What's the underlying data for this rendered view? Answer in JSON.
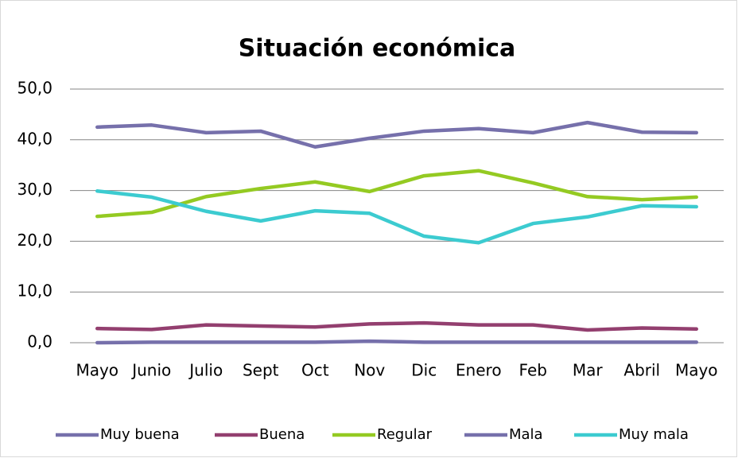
{
  "chart_data": {
    "type": "line",
    "title": "Situación económica",
    "categories": [
      "Mayo",
      "Junio",
      "Julio",
      "Sept",
      "Oct",
      "Nov",
      "Dic",
      "Enero",
      "Feb",
      "Mar",
      "Abril",
      "Mayo"
    ],
    "series": [
      {
        "name": "Muy buena",
        "color": "#7670ab",
        "values": [
          0.0,
          0.1,
          0.1,
          0.1,
          0.1,
          0.3,
          0.1,
          0.1,
          0.1,
          0.1,
          0.1,
          0.1
        ]
      },
      {
        "name": "Buena",
        "color": "#933f6f",
        "values": [
          2.8,
          2.6,
          3.5,
          3.3,
          3.1,
          3.7,
          3.9,
          3.5,
          3.5,
          2.5,
          2.9,
          2.7
        ]
      },
      {
        "name": "Regular",
        "color": "#94ca22",
        "values": [
          24.9,
          25.7,
          28.8,
          30.4,
          31.7,
          29.8,
          32.9,
          33.9,
          31.5,
          28.8,
          28.2,
          28.7
        ]
      },
      {
        "name": "Mala",
        "color": "#7670ab",
        "values": [
          42.5,
          42.9,
          41.4,
          41.7,
          38.6,
          40.3,
          41.7,
          42.2,
          41.4,
          43.4,
          41.5,
          41.4
        ]
      },
      {
        "name": "Muy mala",
        "color": "#3ccbd0",
        "values": [
          29.9,
          28.7,
          25.9,
          24.0,
          26.0,
          25.5,
          21.0,
          19.7,
          23.5,
          24.8,
          27.0,
          26.8
        ]
      }
    ],
    "ylim": [
      0,
      50
    ],
    "yticks": [
      {
        "value": 0,
        "label": "0,0"
      },
      {
        "value": 10,
        "label": "10,0"
      },
      {
        "value": 20,
        "label": "20,0"
      },
      {
        "value": 30,
        "label": "30,0"
      },
      {
        "value": 40,
        "label": "40,0"
      },
      {
        "value": 50,
        "label": "50,0"
      }
    ],
    "grid": true,
    "legend": "bottom"
  }
}
